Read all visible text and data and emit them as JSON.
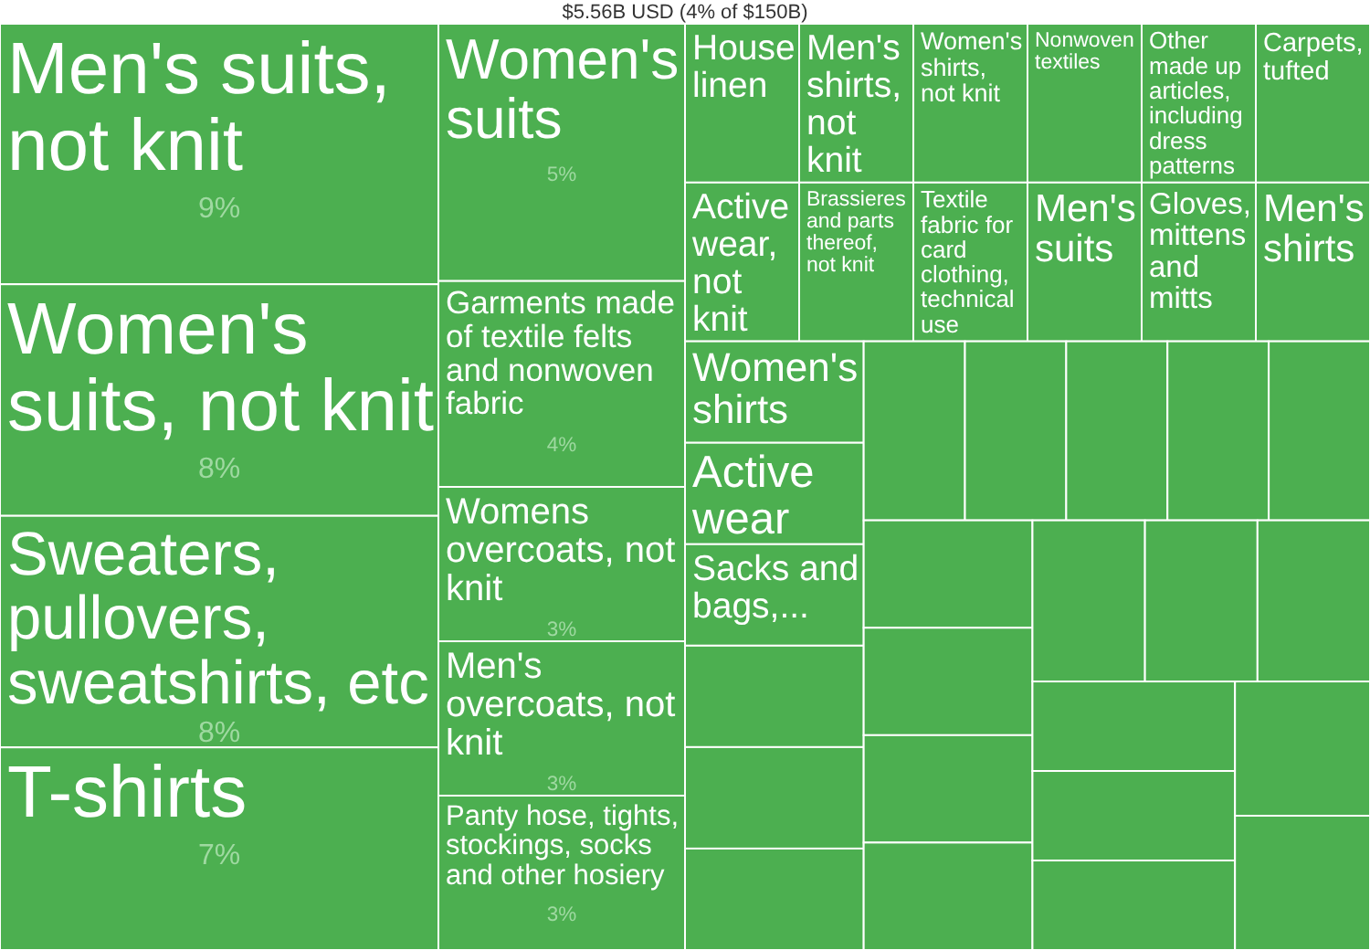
{
  "chart_data": {
    "type": "other",
    "title": "$5.56B USD (4% of $150B)",
    "categories": [
      "Men's suits, not knit",
      "Women's suits, not knit",
      "Sweaters, pullovers, sweatshirts, etc",
      "T-shirts",
      "Women's suits",
      "Garments made of textile felts and nonwoven fabric",
      "Womens overcoats, not knit",
      "Men's overcoats, not knit",
      "Panty hose, tights, stockings, socks and other hosiery",
      "House linen",
      "Men's shirts, not knit",
      "Women's shirts, not knit",
      "Nonwoven textiles",
      "Other made up articles, including dress patterns",
      "Carpets, tufted",
      "Active wear, not knit",
      "Brassieres and parts thereof, not knit",
      "Textile fabric for card clothing, technical use",
      "Men's suits",
      "Gloves, mittens and mitts",
      "Men's shirts",
      "Women's shirts",
      "Active wear",
      "Sacks and bags,...",
      null,
      null,
      null,
      null,
      null,
      null,
      null,
      null,
      null,
      null,
      null,
      null,
      null,
      null,
      null,
      null,
      null,
      null,
      null,
      null
    ],
    "values": [
      9,
      8,
      8,
      7,
      5,
      4,
      3,
      3,
      3,
      null,
      null,
      null,
      null,
      null,
      null,
      null,
      null,
      null,
      null,
      null,
      null,
      null,
      null,
      null,
      null,
      null,
      null,
      null,
      null,
      null,
      null,
      null,
      null,
      null,
      null,
      null,
      null,
      null,
      null,
      null,
      null,
      null,
      null,
      null
    ],
    "value_labels": [
      "9%",
      "8%",
      "8%",
      "7%",
      "5%",
      "4%",
      "3%",
      "3%",
      "3%",
      null,
      null,
      null,
      null,
      null,
      null,
      null,
      null,
      null,
      null,
      null,
      null,
      null,
      null,
      null,
      null,
      null,
      null,
      null,
      null,
      null,
      null,
      null,
      null,
      null,
      null,
      null,
      null,
      null,
      null,
      null,
      null,
      null,
      null,
      null
    ],
    "color": "#4caf50"
  }
}
